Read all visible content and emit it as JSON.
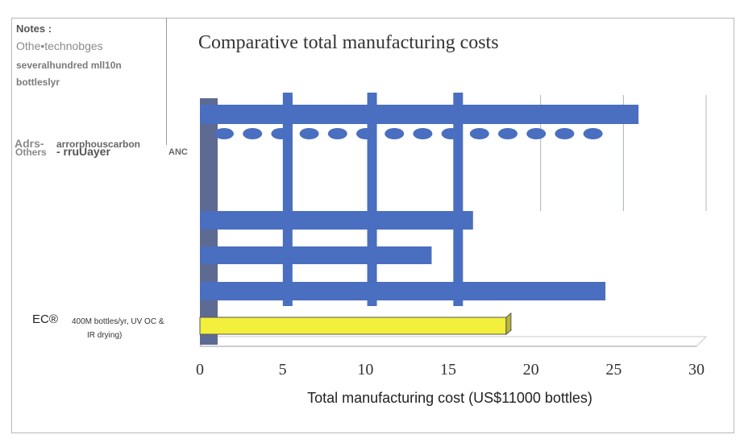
{
  "notes": {
    "title": "Notes :",
    "line1": "Othe•technobges",
    "line2": "severalhundred mll10n",
    "line3": "bottleslyr"
  },
  "left_labels": {
    "adrs": "Adrs-",
    "adrs_sub": "arrorphouscarbon",
    "others": "Others",
    "others_sub": "- rruUayer",
    "anc": "ANC",
    "ec": "EC®",
    "ec_desc_line1": "400M bottles/yr, UV OC &",
    "ec_desc_line2": "IR drying)"
  },
  "chart_data": {
    "type": "bar",
    "orientation": "horizontal",
    "title": "Comparative total manufacturing costs",
    "xlabel": "Total manufacturing cost (US$11000 bottles)",
    "xlim": [
      0,
      30
    ],
    "xticks": [
      "0",
      "5",
      "10",
      "15",
      "20",
      "25",
      "30"
    ],
    "grid": true,
    "bars": [
      {
        "value": 26.5,
        "style": "solid",
        "color": "#4a6ec0"
      },
      {
        "value": 24,
        "style": "dashed",
        "color": "#4a6ec0"
      },
      {
        "value": 16.5,
        "style": "solid",
        "color": "#4a6ec0"
      },
      {
        "value": 14,
        "style": "solid",
        "color": "#4a6ec0"
      },
      {
        "value": 24.5,
        "style": "solid",
        "color": "#4a6ec0"
      },
      {
        "value": 18.5,
        "style": "solid",
        "color": "#f2f03c"
      }
    ]
  }
}
